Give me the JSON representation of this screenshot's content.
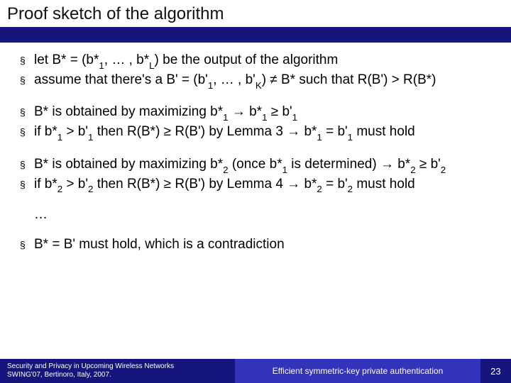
{
  "title": "Proof sketch of the algorithm",
  "groups": [
    [
      "let B* = (b*₁, … , b*_L) be the output of the algorithm",
      "assume that there's a B' = (b'₁, … , b'_K) ≠ B* such that R(B') > R(B*)"
    ],
    [
      "B* is obtained by maximizing b*₁ → b*₁ ≥ b'₁",
      "if b*₁ > b'₁ then R(B*) ≥ R(B') by Lemma 3 → b*₁ = b'₁ must hold"
    ],
    [
      "B* is obtained by maximizing b*₂ (once b*₁ is determined) → b*₂ ≥ b'₂",
      "if b*₂ > b'₂ then R(B*) ≥ R(B') by Lemma 4 → b*₂ = b'₂ must hold"
    ]
  ],
  "ellipsis": "…",
  "final": "B* = B' must hold, which is a contradiction",
  "footer": {
    "left_line1": "Security and Privacy in Upcoming Wireless Networks",
    "left_line2": "SWING'07, Bertinoro, Italy, 2007.",
    "mid": "Efficient symmetric-key private authentication",
    "page": "23"
  },
  "colors": {
    "title_bar": "#15157d",
    "footer_left": "#15157d",
    "footer_mid": "#3333bb",
    "footer_right": "#15157d",
    "text": "#000000",
    "footer_text": "#ffffff"
  }
}
